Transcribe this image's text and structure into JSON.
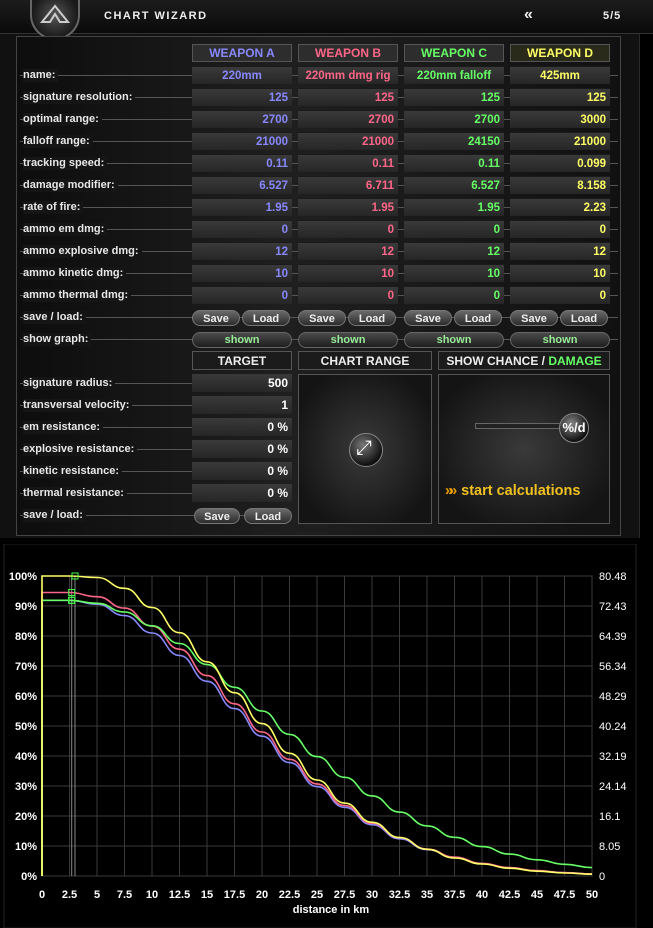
{
  "title_bar": {
    "title": "CHART WIZARD",
    "back_label": "«",
    "page": "5/5"
  },
  "colors": {
    "weapon_a": "#8888ff",
    "weapon_b": "#ff6688",
    "weapon_c": "#66ff66",
    "weapon_d": "#ffff66"
  },
  "weapons": [
    {
      "header": "WEAPON A",
      "name": "220mm",
      "signature_resolution": "125",
      "optimal_range": "2700",
      "falloff_range": "21000",
      "tracking_speed": "0.11",
      "damage_modifier": "6.527",
      "rate_of_fire": "1.95",
      "ammo_em": "0",
      "ammo_explosive": "12",
      "ammo_kinetic": "10",
      "ammo_thermal": "0",
      "save": "Save",
      "load": "Load",
      "graph": "shown"
    },
    {
      "header": "WEAPON B",
      "name": "220mm dmg rig",
      "signature_resolution": "125",
      "optimal_range": "2700",
      "falloff_range": "21000",
      "tracking_speed": "0.11",
      "damage_modifier": "6.711",
      "rate_of_fire": "1.95",
      "ammo_em": "0",
      "ammo_explosive": "12",
      "ammo_kinetic": "10",
      "ammo_thermal": "0",
      "save": "Save",
      "load": "Load",
      "graph": "shown"
    },
    {
      "header": "WEAPON C",
      "name": "220mm falloff",
      "signature_resolution": "125",
      "optimal_range": "2700",
      "falloff_range": "24150",
      "tracking_speed": "0.11",
      "damage_modifier": "6.527",
      "rate_of_fire": "1.95",
      "ammo_em": "0",
      "ammo_explosive": "12",
      "ammo_kinetic": "10",
      "ammo_thermal": "0",
      "save": "Save",
      "load": "Load",
      "graph": "shown"
    },
    {
      "header": "WEAPON D",
      "name": "425mm",
      "signature_resolution": "125",
      "optimal_range": "3000",
      "falloff_range": "21000",
      "tracking_speed": "0.099",
      "damage_modifier": "8.158",
      "rate_of_fire": "2.23",
      "ammo_em": "0",
      "ammo_explosive": "12",
      "ammo_kinetic": "10",
      "ammo_thermal": "0",
      "save": "Save",
      "load": "Load",
      "graph": "shown"
    }
  ],
  "weapon_labels": {
    "name": "name:",
    "signature_resolution": "signature resolution:",
    "optimal_range": "optimal range:",
    "falloff_range": "falloff range:",
    "tracking_speed": "tracking speed:",
    "damage_modifier": "damage modifier:",
    "rate_of_fire": "rate of fire:",
    "ammo_em": "ammo em dmg:",
    "ammo_explosive": "ammo explosive dmg:",
    "ammo_kinetic": "ammo kinetic dmg:",
    "ammo_thermal": "ammo thermal dmg:",
    "save_load": "save / load:",
    "show_graph": "show graph:"
  },
  "target": {
    "header": "TARGET",
    "labels": {
      "signature_radius": "signature radius:",
      "transversal_velocity": "transversal velocity:",
      "em_resistance": "em resistance:",
      "explosive_resistance": "explosive resistance:",
      "kinetic_resistance": "kinetic resistance:",
      "thermal_resistance": "thermal resistance:",
      "save_load": "save / load:"
    },
    "values": {
      "signature_radius": "500",
      "transversal_velocity": "1",
      "em_resistance": "0 %",
      "explosive_resistance": "0 %",
      "kinetic_resistance": "0 %",
      "thermal_resistance": "0 %"
    },
    "save": "Save",
    "load": "Load"
  },
  "chart_range": {
    "header": "CHART RANGE"
  },
  "show_chance": {
    "header_a": "SHOW CHANCE / ",
    "header_b": "DAMAGE",
    "knob_label": "%/d",
    "start_label": "start calculations",
    "start_arrows": "»»"
  },
  "chart_data": {
    "type": "line",
    "xlabel": "distance in km",
    "x_ticks": [
      "0",
      "2.5",
      "5",
      "7.5",
      "10",
      "12.5",
      "15",
      "17.5",
      "20",
      "22.5",
      "25",
      "27.5",
      "30",
      "32.5",
      "35",
      "37.5",
      "40",
      "42.5",
      "45",
      "47.5",
      "50"
    ],
    "y_ticks_left": [
      "0%",
      "10%",
      "20%",
      "30%",
      "40%",
      "50%",
      "60%",
      "70%",
      "80%",
      "90%",
      "100%"
    ],
    "y_ticks_right": [
      "0",
      "8.05",
      "16.1",
      "24.14",
      "32.19",
      "40.24",
      "48.29",
      "56.34",
      "64.39",
      "72.43",
      "80.48"
    ],
    "xlim": [
      0,
      50
    ],
    "ylim": [
      0,
      100
    ],
    "markers_x": [
      2.7,
      3.0
    ],
    "x": [
      0,
      2.5,
      5,
      7.5,
      10,
      12.5,
      15,
      17.5,
      20,
      22.5,
      25,
      27.5,
      30,
      32.5,
      35,
      37.5,
      40,
      42.5,
      45,
      47.5,
      50
    ],
    "series": [
      {
        "color": "#8888ff",
        "values": [
          91.9,
          91.9,
          90.6,
          86.8,
          81.0,
          73.5,
          64.9,
          55.8,
          46.6,
          37.8,
          29.8,
          22.9,
          17.1,
          12.4,
          8.8,
          6.1,
          4.1,
          2.7,
          1.7,
          1.1,
          0.7
        ]
      },
      {
        "color": "#ff6688",
        "values": [
          94.5,
          94.5,
          93.1,
          89.3,
          83.3,
          75.6,
          66.8,
          57.4,
          48.0,
          38.9,
          30.7,
          23.5,
          17.6,
          12.8,
          9.0,
          6.3,
          4.2,
          2.8,
          1.8,
          1.1,
          0.7
        ]
      },
      {
        "color": "#66ff66",
        "values": [
          91.9,
          91.9,
          90.9,
          88.0,
          83.4,
          77.5,
          70.5,
          62.9,
          55.0,
          47.2,
          39.8,
          32.9,
          26.7,
          21.3,
          16.7,
          12.9,
          9.8,
          7.3,
          5.4,
          3.9,
          2.8
        ]
      },
      {
        "color": "#ffff66",
        "values": [
          100,
          100,
          99.5,
          95.9,
          89.5,
          81.1,
          71.4,
          61.1,
          50.8,
          40.9,
          32.0,
          24.3,
          17.9,
          12.8,
          8.9,
          6.0,
          4.0,
          2.6,
          1.6,
          1.0,
          0.6
        ]
      }
    ]
  }
}
